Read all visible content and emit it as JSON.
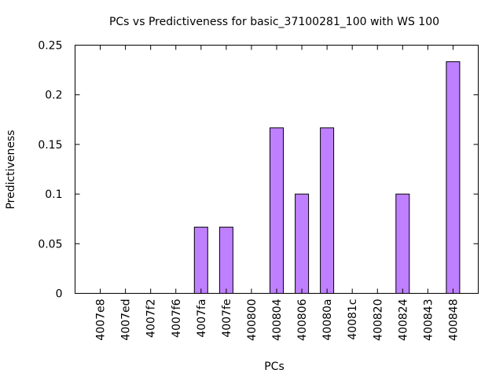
{
  "chart_data": {
    "type": "bar",
    "title": "PCs vs Predictiveness for basic_37100281_100 with WS 100",
    "xlabel": "PCs",
    "ylabel": "Predictiveness",
    "categories": [
      "4007e8",
      "4007ed",
      "4007f2",
      "4007f6",
      "4007fa",
      "4007fe",
      "400800",
      "400804",
      "400806",
      "40080a",
      "40081c",
      "400820",
      "400824",
      "400843",
      "400848"
    ],
    "values": [
      0,
      0,
      0,
      0,
      0.0667,
      0.0667,
      0,
      0.1667,
      0.1,
      0.1667,
      0,
      0,
      0.1,
      0,
      0.2333
    ],
    "ylim": [
      0,
      0.25
    ],
    "yticks": [
      "0",
      "0.05",
      "0.1",
      "0.15",
      "0.2",
      "0.25"
    ],
    "grid": false,
    "legend": "none",
    "colors": {
      "bar": "#bf80ff",
      "bar_outline": "#000000",
      "axis": "#000000"
    }
  }
}
